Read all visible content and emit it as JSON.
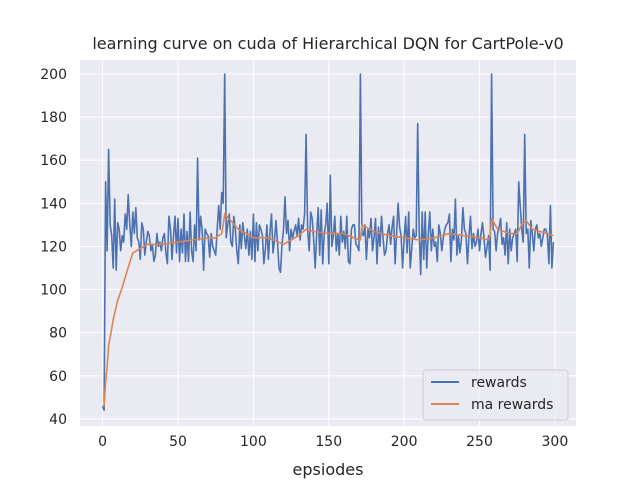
{
  "chart_data": {
    "type": "line",
    "title": "learning curve on cuda of Hierarchical DQN for CartPole-v0",
    "xlabel": "epsiodes",
    "ylabel": "",
    "xlim": [
      -15,
      314
    ],
    "ylim": [
      36.7,
      206.5
    ],
    "xticks": [
      0,
      50,
      100,
      150,
      200,
      250,
      300
    ],
    "yticks": [
      40,
      60,
      80,
      100,
      120,
      140,
      160,
      180,
      200
    ],
    "grid": true,
    "legend": "bottom-right",
    "background": "#eaeaf2",
    "series": [
      {
        "name": "rewards",
        "color": "#4c72b0",
        "values": [
          46,
          44,
          150,
          118,
          165,
          130,
          125,
          110,
          142,
          109,
          131,
          128,
          118,
          125,
          122,
          135,
          128,
          144,
          130,
          120,
          136,
          126,
          138,
          124,
          122,
          114,
          131,
          128,
          116,
          122,
          127,
          125,
          118,
          121,
          113,
          116,
          126,
          120,
          122,
          118,
          124,
          126,
          117,
          112,
          134,
          128,
          114,
          125,
          134,
          117,
          133,
          113,
          128,
          117,
          135,
          113,
          127,
          113,
          136,
          118,
          113,
          130,
          118,
          161,
          123,
          134,
          128,
          109,
          128,
          126,
          125,
          115,
          126,
          120,
          118,
          116,
          128,
          139,
          128,
          145,
          140,
          200,
          124,
          130,
          135,
          122,
          120,
          134,
          128,
          118,
          112,
          130,
          119,
          131,
          125,
          119,
          128,
          116,
          127,
          114,
          135,
          113,
          131,
          118,
          130,
          128,
          125,
          112,
          119,
          130,
          114,
          127,
          135,
          117,
          123,
          132,
          122,
          110,
          108,
          121,
          128,
          143,
          126,
          132,
          118,
          128,
          124,
          127,
          130,
          125,
          133,
          123,
          130,
          128,
          135,
          172,
          128,
          118,
          136,
          133,
          123,
          110,
          126,
          138,
          116,
          137,
          112,
          126,
          130,
          140,
          112,
          153,
          120,
          125,
          134,
          118,
          126,
          116,
          134,
          122,
          127,
          119,
          134,
          113,
          112,
          128,
          130,
          130,
          121,
          120,
          118,
          200,
          126,
          125,
          130,
          114,
          128,
          124,
          133,
          118,
          124,
          133,
          112,
          129,
          120,
          134,
          124,
          116,
          118,
          126,
          130,
          121,
          129,
          134,
          112,
          126,
          140,
          129,
          125,
          110,
          123,
          134,
          117,
          136,
          110,
          119,
          128,
          124,
          125,
          177,
          127,
          107,
          136,
          114,
          136,
          110,
          126,
          136,
          118,
          128,
          120,
          122,
          113,
          130,
          126,
          118,
          124,
          128,
          130,
          131,
          135,
          113,
          128,
          123,
          142,
          116,
          125,
          117,
          123,
          138,
          128,
          126,
          112,
          125,
          134,
          119,
          126,
          120,
          122,
          128,
          118,
          126,
          131,
          124,
          115,
          120,
          125,
          109,
          200,
          128,
          127,
          118,
          126,
          129,
          133,
          121,
          124,
          116,
          131,
          112,
          128,
          118,
          124,
          126,
          128,
          113,
          150,
          139,
          128,
          122,
          172,
          126,
          128,
          110,
          132,
          126,
          118,
          128,
          130,
          124,
          126,
          120,
          124,
          128,
          128,
          125,
          112,
          139,
          110,
          122
        ]
      },
      {
        "name": "ma rewards",
        "color": "#dd8452",
        "x": [
          0,
          1,
          2,
          3,
          4,
          5,
          7,
          10,
          13,
          16,
          20,
          25,
          30,
          40,
          50,
          60,
          70,
          75,
          79,
          80,
          81,
          85,
          90,
          95,
          100,
          110,
          120,
          125,
          130,
          135,
          140,
          150,
          160,
          170,
          171,
          172,
          180,
          190,
          200,
          210,
          220,
          230,
          240,
          250,
          256,
          257,
          258,
          262,
          270,
          275,
          278,
          281,
          285,
          290,
          295,
          299
        ],
        "values": [
          46,
          46,
          57,
          64,
          74,
          78,
          86,
          95,
          101,
          108,
          117,
          119,
          121,
          121,
          122,
          123,
          124,
          124,
          126,
          130,
          135,
          132,
          128,
          126,
          124,
          124,
          121,
          123,
          125,
          128,
          127,
          126,
          126,
          123,
          123,
          130,
          127,
          125,
          124,
          123,
          124,
          126,
          125,
          124,
          123,
          125,
          133,
          128,
          126,
          126,
          130,
          132,
          128,
          127,
          126,
          125
        ]
      }
    ]
  }
}
